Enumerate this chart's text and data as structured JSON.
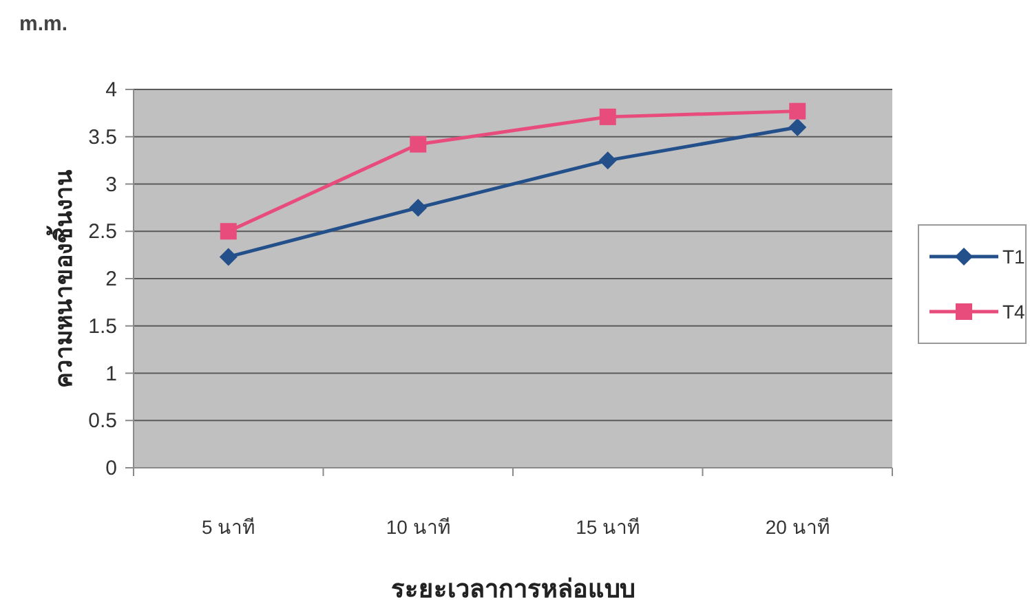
{
  "chart_data": {
    "type": "line",
    "xlabel": "ระยะเวลาการหล่อแบบ",
    "ylabel": "ความหนาของชิ้นงาน",
    "annotations": [
      "m.m."
    ],
    "categories": [
      "5 นาที",
      "10 นาที",
      "15 นาที",
      "20 นาที"
    ],
    "series": [
      {
        "name": "T1",
        "color": "#23508a",
        "marker": "diamond",
        "values": [
          2.23,
          2.75,
          3.25,
          3.6
        ]
      },
      {
        "name": "T4",
        "color": "#e84c7d",
        "marker": "square",
        "values": [
          2.5,
          3.42,
          3.71,
          3.77
        ]
      }
    ],
    "ylim": [
      0,
      4
    ],
    "yticks": [
      0,
      0.5,
      1,
      1.5,
      2,
      2.5,
      3,
      3.5,
      4
    ],
    "grid": "y",
    "legend": "right",
    "line_style": "solid"
  }
}
